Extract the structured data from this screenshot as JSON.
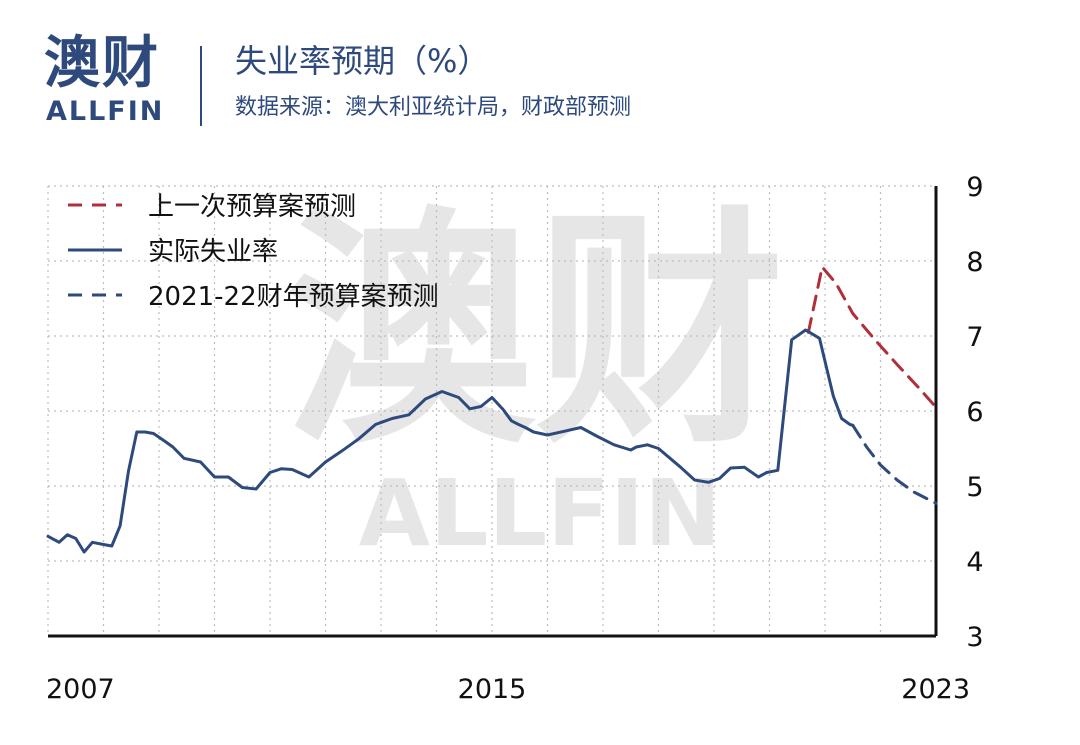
{
  "brand": {
    "name_cn": "澳财",
    "name_en": "ALLFIN",
    "accent_color": "#c9304f",
    "text_color": "#2e4a7d"
  },
  "header": {
    "title": "失业率预期（%）",
    "source": "数据来源：澳大利亚统计局，财政部预测"
  },
  "chart_data": {
    "type": "line",
    "title": "失业率预期（%）",
    "xlabel": "",
    "ylabel": "",
    "xlim": [
      2007,
      2023
    ],
    "ylim": [
      3,
      9
    ],
    "y_axis_side": "right",
    "x_ticks": [
      "2007",
      "2015",
      "2023"
    ],
    "y_ticks": [
      "3",
      "4",
      "5",
      "6",
      "7",
      "8",
      "9"
    ],
    "grid": "dotted",
    "legend_position": "top-left",
    "series": [
      {
        "name": "上一次预算案预测",
        "style": "dashed",
        "color": "#b0303a",
        "x": [
          2020.7,
          2020.95,
          2021.2,
          2021.5,
          2021.9,
          2022.3,
          2022.7,
          2023.0
        ],
        "y": [
          7.05,
          7.92,
          7.7,
          7.3,
          6.95,
          6.62,
          6.3,
          6.05
        ]
      },
      {
        "name": "实际失业率",
        "style": "solid",
        "color": "#2e4a7d",
        "x": [
          2007.0,
          2007.2,
          2007.35,
          2007.5,
          2007.65,
          2007.8,
          2008.0,
          2008.15,
          2008.3,
          2008.45,
          2008.6,
          2008.75,
          2008.9,
          2009.1,
          2009.25,
          2009.45,
          2009.75,
          2010.0,
          2010.25,
          2010.5,
          2010.75,
          2011.0,
          2011.2,
          2011.4,
          2011.7,
          2012.0,
          2012.3,
          2012.6,
          2012.9,
          2013.2,
          2013.5,
          2013.8,
          2014.1,
          2014.4,
          2014.6,
          2014.8,
          2015.0,
          2015.2,
          2015.35,
          2015.48,
          2015.6,
          2015.75,
          2016.0,
          2016.3,
          2016.6,
          2016.9,
          2017.2,
          2017.5,
          2017.6,
          2017.8,
          2018.0,
          2018.4,
          2018.65,
          2018.9,
          2019.1,
          2019.3,
          2019.55,
          2019.8,
          2019.95,
          2020.15,
          2020.4,
          2020.65,
          2020.9,
          2021.15,
          2021.3,
          2021.45,
          2021.5
        ],
        "y": [
          4.33,
          4.25,
          4.35,
          4.3,
          4.12,
          4.25,
          4.22,
          4.2,
          4.47,
          5.2,
          5.72,
          5.72,
          5.7,
          5.6,
          5.52,
          5.37,
          5.32,
          5.12,
          5.12,
          4.98,
          4.96,
          5.18,
          5.23,
          5.22,
          5.12,
          5.32,
          5.47,
          5.63,
          5.82,
          5.9,
          5.95,
          6.16,
          6.26,
          6.18,
          6.03,
          6.06,
          6.18,
          6.02,
          5.87,
          5.82,
          5.78,
          5.72,
          5.68,
          5.73,
          5.78,
          5.66,
          5.55,
          5.48,
          5.52,
          5.55,
          5.5,
          5.25,
          5.08,
          5.05,
          5.1,
          5.24,
          5.25,
          5.12,
          5.18,
          5.21,
          6.95,
          7.08,
          6.97,
          6.2,
          5.9,
          5.82,
          5.81
        ]
      },
      {
        "name": "2021-22财年预算案预测",
        "style": "dashed",
        "color": "#2e4a7d",
        "x": [
          2021.5,
          2021.75,
          2022.0,
          2022.3,
          2022.6,
          2023.0
        ],
        "y": [
          5.81,
          5.52,
          5.28,
          5.08,
          4.92,
          4.77
        ]
      }
    ]
  }
}
